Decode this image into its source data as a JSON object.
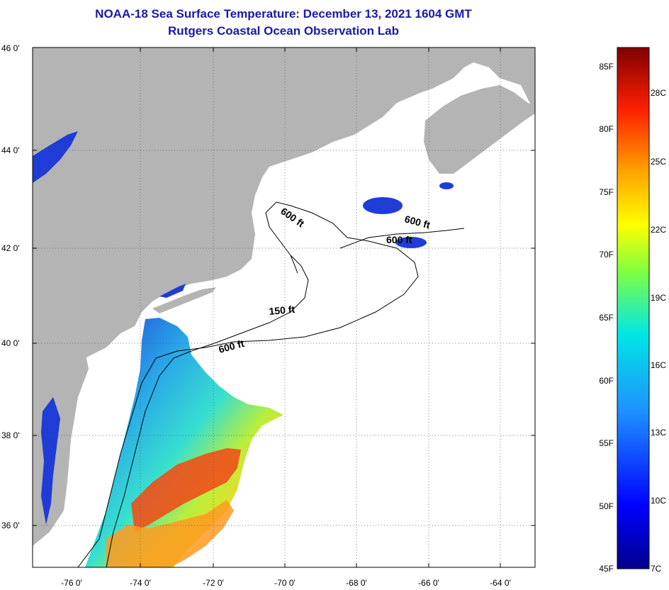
{
  "header": {
    "title_line1": "NOAA-18 Sea Surface Temperature:  December 13, 2021 1604 GMT",
    "title_line2": "Rutgers Coastal Ocean Observation Lab"
  },
  "axes": {
    "y_labels": [
      "46 0'",
      "44 0'",
      "42 0'",
      "40 0'",
      "38 0'",
      "36 0'"
    ],
    "x_labels": [
      "-76 0'",
      "-74 0'",
      "-72 0'",
      "-70 0'",
      "-68 0'",
      "-66 0'",
      "-64 0'"
    ]
  },
  "contours": {
    "labels": [
      "600 ft",
      "600 ft",
      "600 ft",
      "150 ft",
      "600 ft"
    ]
  },
  "colorbar": {
    "fahrenheit": [
      "85F",
      "80F",
      "75F",
      "70F",
      "65F",
      "60F",
      "55F",
      "50F",
      "45F"
    ],
    "celsius": [
      "28C",
      "25C",
      "22C",
      "19C",
      "16C",
      "13C",
      "10C",
      "7C"
    ]
  },
  "colors": {
    "land": "#b4b4b4",
    "ocean_no_data": "#ffffff",
    "title": "#1a1aa8"
  }
}
